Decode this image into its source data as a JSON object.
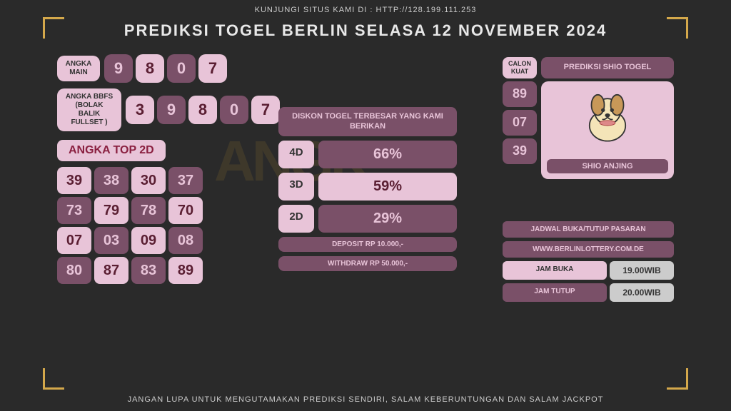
{
  "header": {
    "visit_text": "KUNJUNGI SITUS KAMI DI : HTTP://128.199.111.253",
    "title": "PREDIKSI TOGEL BERLIN SELASA 12 NOVEMBER 2024"
  },
  "colors": {
    "bg": "#2a2a2a",
    "accent": "#d4a84b",
    "box_light": "#e8c4d8",
    "box_dark": "#7a5068",
    "text_dark": "#5a1e32",
    "text_red": "#8a2040"
  },
  "angka_main": {
    "label": "ANGKA MAIN",
    "values": [
      "9",
      "8",
      "0",
      "7"
    ],
    "styles": [
      "dark",
      "light",
      "dark",
      "light"
    ]
  },
  "angka_bbfs": {
    "label": "ANGKA BBFS (BOLAK BALIK FULLSET )",
    "values": [
      "3",
      "9",
      "8",
      "0",
      "7"
    ],
    "styles": [
      "light",
      "dark",
      "light",
      "dark",
      "light"
    ]
  },
  "top_2d": {
    "title": "ANGKA TOP 2D",
    "cells": [
      {
        "v": "39",
        "s": "light"
      },
      {
        "v": "38",
        "s": "dark"
      },
      {
        "v": "30",
        "s": "light"
      },
      {
        "v": "37",
        "s": "dark"
      },
      {
        "v": "73",
        "s": "dark"
      },
      {
        "v": "79",
        "s": "light"
      },
      {
        "v": "78",
        "s": "dark"
      },
      {
        "v": "70",
        "s": "light"
      },
      {
        "v": "07",
        "s": "light"
      },
      {
        "v": "03",
        "s": "dark"
      },
      {
        "v": "09",
        "s": "light"
      },
      {
        "v": "08",
        "s": "dark"
      },
      {
        "v": "80",
        "s": "dark"
      },
      {
        "v": "87",
        "s": "light"
      },
      {
        "v": "83",
        "s": "dark"
      },
      {
        "v": "89",
        "s": "light"
      }
    ]
  },
  "diskon": {
    "title": "DISKON TOGEL TERBESAR YANG KAMI BERIKAN",
    "rows": [
      {
        "label": "4D",
        "value": "66%",
        "bg": "dark"
      },
      {
        "label": "3D",
        "value": "59%",
        "bg": "light"
      },
      {
        "label": "2D",
        "value": "29%",
        "bg": "dark"
      }
    ],
    "deposit": "DEPOSIT RP 10.000,-",
    "withdraw": "WITHDRAW RP 50.000,-"
  },
  "shio": {
    "calon_label": "CALON KUAT",
    "prediksi_label": "PREDIKSI SHIO TOGEL",
    "numbers": [
      "89",
      "07",
      "39"
    ],
    "name": "SHIO ANJING"
  },
  "schedule": {
    "title": "JADWAL BUKA/TUTUP PASARAN",
    "website": "WWW.BERLINLOTTERY.COM.DE",
    "open_label": "JAM BUKA",
    "open_time": "19.00WIB",
    "close_label": "JAM TUTUP",
    "close_time": "20.00WIB"
  },
  "footer": "JANGAN LUPA UNTUK MENGUTAMAKAN PREDIKSI SENDIRI, SALAM KEBERUNTUNGAN DAN SALAM JACKPOT"
}
